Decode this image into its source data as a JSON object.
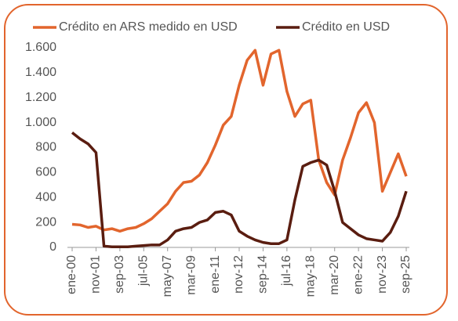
{
  "chart_data": {
    "type": "line",
    "categories": [
      "ene-00",
      null,
      null,
      "nov-01",
      null,
      null,
      "sep-03",
      null,
      null,
      "jul-05",
      null,
      null,
      "may-07",
      null,
      null,
      "mar-09",
      null,
      null,
      "ene-11",
      null,
      null,
      "nov-12",
      null,
      null,
      "sep-14",
      null,
      null,
      "jul-16",
      null,
      null,
      "may-18",
      null,
      null,
      "mar-20",
      null,
      null,
      "ene-22",
      null,
      null,
      "nov-23",
      null,
      null,
      "sep-25"
    ],
    "series": [
      {
        "name": "Crédito en ARS medido en USD",
        "color": "#e2652d",
        "values": [
          185,
          180,
          160,
          170,
          140,
          150,
          130,
          150,
          160,
          190,
          230,
          290,
          350,
          450,
          520,
          530,
          580,
          680,
          820,
          980,
          1050,
          1300,
          1500,
          1580,
          1300,
          1550,
          1580,
          1250,
          1050,
          1150,
          1180,
          700,
          520,
          420,
          700,
          880,
          1080,
          1160,
          1000,
          450,
          600,
          750,
          570
        ]
      },
      {
        "name": "Crédito en USD",
        "color": "#5a1d10",
        "values": [
          920,
          870,
          830,
          760,
          10,
          5,
          5,
          5,
          10,
          15,
          20,
          20,
          60,
          130,
          150,
          160,
          200,
          220,
          280,
          290,
          260,
          130,
          90,
          60,
          40,
          30,
          30,
          60,
          380,
          650,
          680,
          700,
          660,
          450,
          200,
          150,
          100,
          70,
          60,
          50,
          120,
          250,
          450
        ]
      }
    ],
    "ylim": [
      0,
      1600
    ],
    "yticks": [
      0,
      200,
      400,
      600,
      800,
      {
        "value": 1000,
        "label": "1.000"
      },
      {
        "value": 1200,
        "label": "1.200"
      },
      {
        "value": 1400,
        "label": "1.400"
      },
      {
        "value": 1600,
        "label": "1.600"
      }
    ]
  }
}
